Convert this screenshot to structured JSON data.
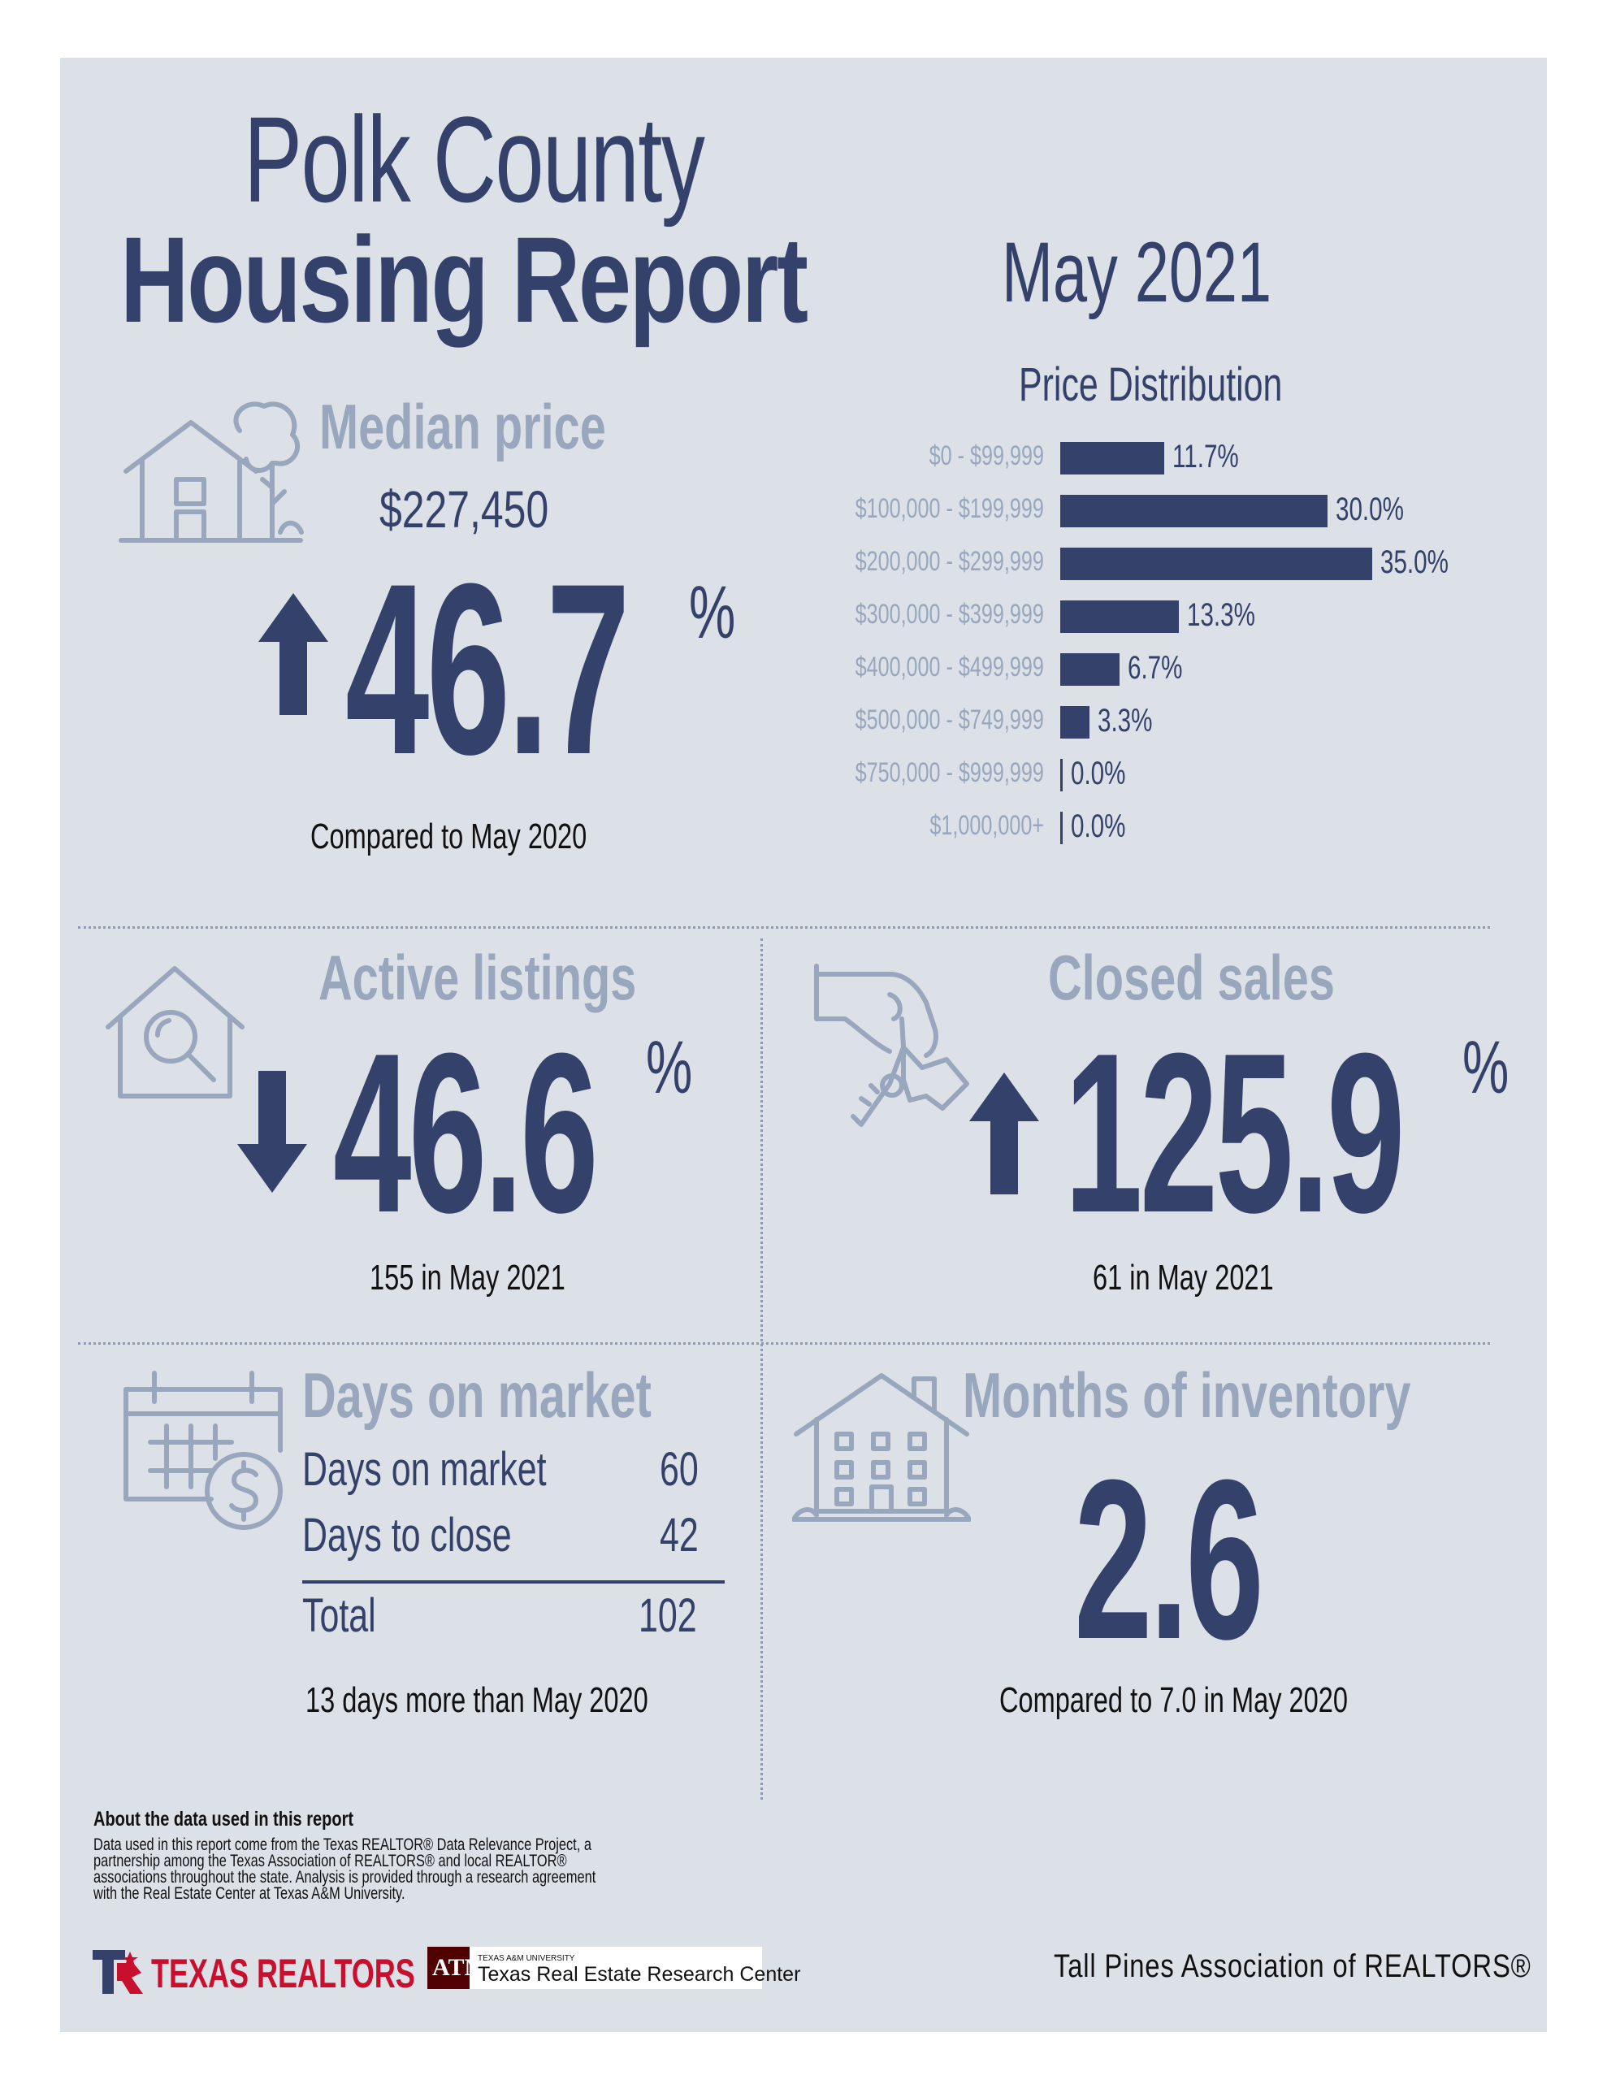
{
  "header": {
    "title_line1": "Polk County",
    "title_line2": "Housing Report",
    "date": "May 2021"
  },
  "median_price": {
    "label": "Median price",
    "value": "$227,450",
    "change": "46.7",
    "percent_sign": "%",
    "direction": "up",
    "caption": "Compared to May 2020"
  },
  "price_distribution": {
    "title": "Price Distribution"
  },
  "chart_data": {
    "type": "bar",
    "orientation": "horizontal",
    "title": "Price Distribution",
    "categories": [
      "$0 - $99,999",
      "$100,000 - $199,999",
      "$200,000 - $299,999",
      "$300,000 - $399,999",
      "$400,000 - $499,999",
      "$500,000 - $749,999",
      "$750,000 - $999,999",
      "$1,000,000+"
    ],
    "values": [
      11.7,
      30.0,
      35.0,
      13.3,
      6.7,
      3.3,
      0.0,
      0.0
    ],
    "value_labels": [
      "11.7%",
      "30.0%",
      "35.0%",
      "13.3%",
      "6.7%",
      "3.3%",
      "0.0%",
      "0.0%"
    ],
    "bar_color": "#33416b",
    "grid": false
  },
  "active_listings": {
    "label": "Active listings",
    "change": "46.6",
    "percent_sign": "%",
    "direction": "down",
    "caption": "155 in May 2021"
  },
  "closed_sales": {
    "label": "Closed sales",
    "change": "125.9",
    "percent_sign": "%",
    "direction": "up",
    "caption": "61 in May 2021"
  },
  "days_on_market": {
    "label": "Days on market",
    "rows": [
      {
        "label": "Days on market",
        "value": "60"
      },
      {
        "label": "Days to close",
        "value": "42"
      }
    ],
    "total_label": "Total",
    "total_value": "102",
    "caption": "13 days more than May 2020"
  },
  "months_inventory": {
    "label": "Months of inventory",
    "value": "2.6",
    "caption": "Compared to 7.0 in May 2020"
  },
  "footer": {
    "about_title": "About the data used in this report",
    "about_lines": [
      "Data used in this report come from the Texas REALTOR® Data Relevance Project, a",
      "partnership among the Texas Association of REALTORS® and local REALTOR®",
      "associations throughout the state. Analysis is provided through a research agreement",
      "with the Real Estate Center at Texas A&M University."
    ],
    "logo_texas_realtors": "TEXAS REALTORS",
    "tamu_small": "TEXAS A&M UNIVERSITY",
    "tamu_center": "Texas Real Estate Research Center",
    "association": "Tall Pines Association of REALTORS®"
  },
  "colors": {
    "navy": "#33416b",
    "pale": "#98a7bd",
    "panel": "#dce0e7",
    "logo_red": "#c8102e",
    "tamu_maroon": "#500000"
  }
}
